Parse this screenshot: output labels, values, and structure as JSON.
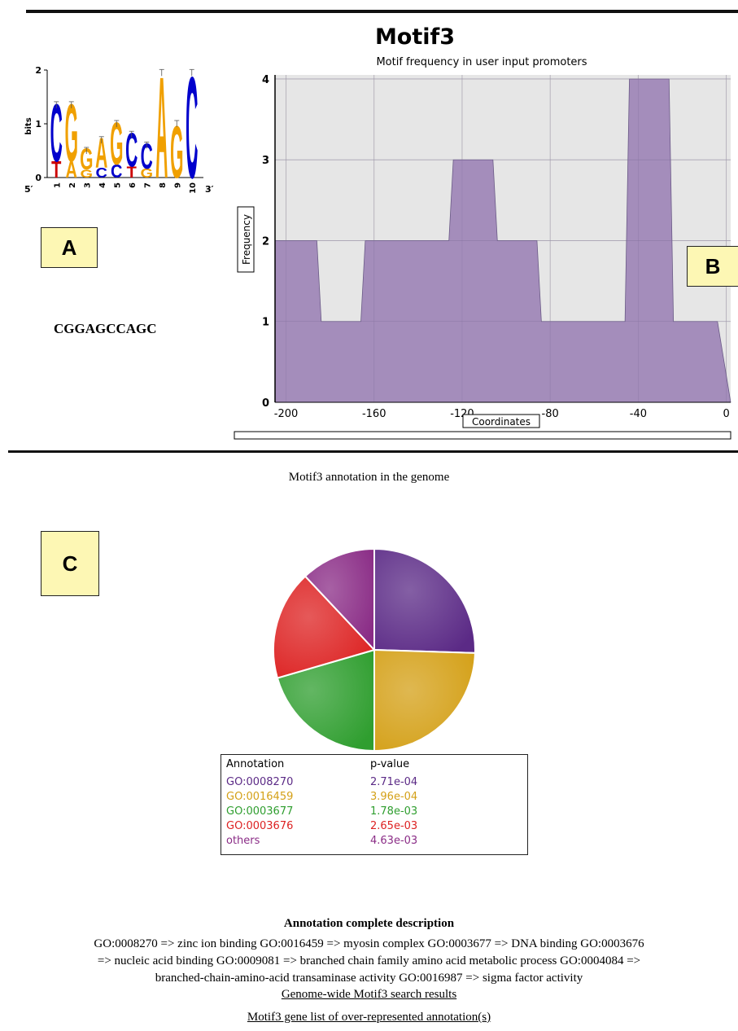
{
  "panel_labels": {
    "a": "A",
    "b": "B",
    "c": "C"
  },
  "logo": {
    "y_axis_label": "bits",
    "y_ticks": [
      "0",
      "1",
      "2"
    ],
    "positions": [
      "1",
      "2",
      "3",
      "4",
      "5",
      "6",
      "7",
      "8",
      "9",
      "10"
    ],
    "end_5": "5′",
    "end_3": "3′",
    "colors": {
      "A": "#f0a000",
      "C": "#0000cc",
      "G": "#f0a000",
      "T": "#cc0000"
    },
    "stacks": [
      {
        "top": "C",
        "bottom": "T",
        "height": 1.35
      },
      {
        "top": "G",
        "bottom": "A",
        "height": 1.35
      },
      {
        "top": "G",
        "bottom": "G",
        "height": 0.5
      },
      {
        "top": "A",
        "bottom": "C",
        "height": 0.7
      },
      {
        "top": "G",
        "bottom": "C",
        "height": 1.0
      },
      {
        "top": "C",
        "bottom": "T",
        "height": 0.8
      },
      {
        "top": "C",
        "bottom": "G",
        "height": 0.6
      },
      {
        "top": "A",
        "bottom": "",
        "height": 1.95
      },
      {
        "top": "G",
        "bottom": "",
        "height": 1.0
      },
      {
        "top": "C",
        "bottom": "",
        "height": 1.95
      }
    ]
  },
  "consensus": "CGGAGCCAGC",
  "chart_data": [
    {
      "type": "area",
      "title": "Motif3",
      "subtitle": "Motif frequency in user input promoters",
      "xlabel": "Coordinates",
      "ylabel": "Frequency",
      "xlim": [
        -205,
        2
      ],
      "ylim": [
        0,
        4.05
      ],
      "x_ticks": [
        "-200",
        "-160",
        "-120",
        "-80",
        "-40",
        "0"
      ],
      "y_ticks": [
        "0",
        "1",
        "2",
        "3",
        "4"
      ],
      "grid": true,
      "color": "#a088b8",
      "x": [
        -205,
        -186,
        -184,
        -166,
        -164,
        -146,
        -144,
        -126,
        -124,
        -106,
        -104,
        -86,
        -84,
        -66,
        -64,
        -46,
        -44,
        -26,
        -24,
        -6,
        -4,
        2
      ],
      "y": [
        2,
        2,
        1,
        1,
        2,
        2,
        2,
        2,
        3,
        3,
        2,
        2,
        1,
        1,
        1,
        1,
        4,
        4,
        1,
        1,
        1,
        0
      ]
    },
    {
      "type": "pie",
      "caption": "Motif3 annotation in the genome",
      "legend_headers": {
        "annotation": "Annotation",
        "pvalue": "p-value"
      },
      "slices": [
        {
          "label": "GO:0008270",
          "pvalue": "2.71e-04",
          "value": 25.5,
          "color": "#5b2a86"
        },
        {
          "label": "GO:0016459",
          "pvalue": "3.96e-04",
          "value": 24.5,
          "color": "#d4a017"
        },
        {
          "label": "GO:0003677",
          "pvalue": "1.78e-03",
          "value": 20.5,
          "color": "#2f9e2f"
        },
        {
          "label": "GO:0003676",
          "pvalue": "2.65e-03",
          "value": 17.5,
          "color": "#dd2222"
        },
        {
          "label": "others",
          "pvalue": "4.63e-03",
          "value": 12.0,
          "color": "#8a2c86"
        }
      ]
    }
  ],
  "description": {
    "heading": "Annotation complete description",
    "lines": [
      "GO:0008270 => zinc ion binding GO:0016459 => myosin complex GO:0003677 => DNA binding GO:0003676",
      "=> nucleic acid binding GO:0009081 => branched chain family amino acid metabolic process GO:0004084 =>",
      "branched-chain-amino-acid transaminase activity GO:0016987 => sigma factor activity"
    ]
  },
  "links": {
    "genome_wide": "Genome-wide Motif3 search results",
    "gene_list": "Motif3 gene list of over-represented annotation(s)"
  }
}
